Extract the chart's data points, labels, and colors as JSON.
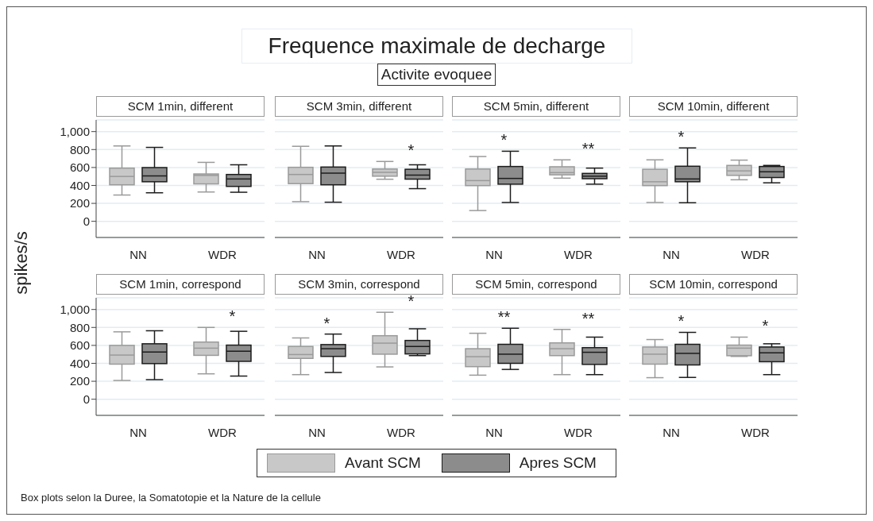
{
  "chart_data": [
    {
      "type": "other",
      "title": "Frequence maximale de decharge",
      "subtitle": "Activite evoquee",
      "annotations": [
        "Box plots selon la Duree, la Somatotopie et la Nature de la cellule"
      ]
    },
    {
      "type": "box",
      "title": "SCM 1min, different",
      "ylabel": "spikes/s",
      "legend": "bottom",
      "grid": "y",
      "categories": [
        "NN",
        "WDR"
      ],
      "ylim": [
        -180,
        1130
      ],
      "yticks": [
        0,
        200,
        400,
        600,
        800,
        {
          "value": 1000,
          "label": "1,000"
        }
      ],
      "series": [
        {
          "name": "Avant SCM",
          "color": "#c8c8c8",
          "boxes": [
            {
              "low": 293,
              "q1": 407,
              "median": 500,
              "q3": 593,
              "high": 840
            },
            {
              "low": 327,
              "q1": 417,
              "median": 512,
              "q3": 528,
              "high": 657
            }
          ]
        },
        {
          "name": "Apres SCM",
          "color": "#8c8c8c",
          "boxes": [
            {
              "low": 318,
              "q1": 441,
              "median": 506,
              "q3": 599,
              "high": 824
            },
            {
              "low": 324,
              "q1": 389,
              "median": 472,
              "q3": 522,
              "high": 630
            }
          ]
        }
      ]
    },
    {
      "type": "box",
      "title": "SCM 3min, different",
      "grid": "y",
      "tick_labels": "x",
      "categories": [
        "NN",
        "WDR"
      ],
      "ylim": [
        -180,
        1130
      ],
      "yticks": [
        0,
        200,
        400,
        600,
        800,
        1000
      ],
      "series": [
        {
          "color": "#c8c8c8",
          "boxes": [
            {
              "low": 219,
              "q1": 420,
              "median": 522,
              "q3": 602,
              "high": 836
            },
            {
              "low": 469,
              "q1": 503,
              "median": 546,
              "q3": 583,
              "high": 667
            }
          ]
        },
        {
          "color": "#8c8c8c",
          "value_labels": [
            null,
            "*"
          ],
          "boxes": [
            {
              "low": 213,
              "q1": 407,
              "median": 537,
              "q3": 605,
              "high": 840
            },
            {
              "low": 364,
              "q1": 470,
              "median": 515,
              "q3": 580,
              "high": 630
            }
          ]
        }
      ]
    },
    {
      "type": "box",
      "title": "SCM 5min, different",
      "grid": "y",
      "tick_labels": "x",
      "categories": [
        "NN",
        "WDR"
      ],
      "ylim": [
        -180,
        1130
      ],
      "yticks": [
        0,
        200,
        400,
        600,
        800,
        1000
      ],
      "series": [
        {
          "color": "#c8c8c8",
          "boxes": [
            {
              "low": 120,
              "q1": 398,
              "median": 454,
              "q3": 583,
              "high": 722
            },
            {
              "low": 481,
              "q1": 518,
              "median": 543,
              "q3": 608,
              "high": 685
            }
          ]
        },
        {
          "color": "#8c8c8c",
          "value_labels": [
            "*",
            "**"
          ],
          "boxes": [
            {
              "low": 210,
              "q1": 414,
              "median": 478,
              "q3": 611,
              "high": 781
            },
            {
              "low": 414,
              "q1": 475,
              "median": 503,
              "q3": 534,
              "high": 593
            }
          ]
        }
      ]
    },
    {
      "type": "box",
      "title": "SCM 10min, different",
      "grid": "y",
      "tick_labels": "x",
      "categories": [
        "NN",
        "WDR"
      ],
      "ylim": [
        -180,
        1130
      ],
      "yticks": [
        0,
        200,
        400,
        600,
        800,
        1000
      ],
      "series": [
        {
          "color": "#c8c8c8",
          "boxes": [
            {
              "low": 210,
              "q1": 398,
              "median": 441,
              "q3": 580,
              "high": 685
            },
            {
              "low": 463,
              "q1": 512,
              "median": 562,
              "q3": 623,
              "high": 682
            }
          ]
        },
        {
          "color": "#8c8c8c",
          "value_labels": [
            "*",
            null
          ],
          "boxes": [
            {
              "low": 207,
              "q1": 441,
              "median": 472,
              "q3": 614,
              "high": 818
            },
            {
              "low": 429,
              "q1": 488,
              "median": 552,
              "q3": 611,
              "high": 623
            }
          ]
        }
      ]
    },
    {
      "type": "box",
      "title": "SCM 1min, correspond",
      "grid": "y",
      "categories": [
        "NN",
        "WDR"
      ],
      "ylim": [
        -180,
        1130
      ],
      "yticks": [
        0,
        200,
        400,
        600,
        800,
        {
          "value": 1000,
          "label": "1,000"
        }
      ],
      "series": [
        {
          "color": "#c8c8c8",
          "boxes": [
            {
              "low": 209,
              "q1": 391,
              "median": 492,
              "q3": 600,
              "high": 751
            },
            {
              "low": 283,
              "q1": 489,
              "median": 569,
              "q3": 637,
              "high": 800
            }
          ]
        },
        {
          "color": "#8c8c8c",
          "value_labels": [
            null,
            "*"
          ],
          "boxes": [
            {
              "low": 218,
              "q1": 397,
              "median": 526,
              "q3": 618,
              "high": 763
            },
            {
              "low": 258,
              "q1": 422,
              "median": 535,
              "q3": 603,
              "high": 757
            }
          ]
        }
      ]
    },
    {
      "type": "box",
      "title": "SCM 3min, correspond",
      "grid": "y",
      "tick_labels": "x",
      "categories": [
        "NN",
        "WDR"
      ],
      "ylim": [
        -180,
        1130
      ],
      "yticks": [
        0,
        200,
        400,
        600,
        800,
        1000
      ],
      "series": [
        {
          "color": "#c8c8c8",
          "boxes": [
            {
              "low": 274,
              "q1": 455,
              "median": 498,
              "q3": 588,
              "high": 683
            },
            {
              "low": 360,
              "q1": 502,
              "median": 625,
              "q3": 708,
              "high": 969
            }
          ]
        },
        {
          "color": "#8c8c8c",
          "value_labels": [
            "*",
            "*"
          ],
          "boxes": [
            {
              "low": 298,
              "q1": 477,
              "median": 563,
              "q3": 609,
              "high": 726
            },
            {
              "low": 486,
              "q1": 505,
              "median": 588,
              "q3": 655,
              "high": 785
            }
          ]
        }
      ]
    },
    {
      "type": "box",
      "title": "SCM 5min, correspond",
      "grid": "y",
      "tick_labels": "x",
      "categories": [
        "NN",
        "WDR"
      ],
      "ylim": [
        -180,
        1130
      ],
      "yticks": [
        0,
        200,
        400,
        600,
        800,
        1000
      ],
      "series": [
        {
          "color": "#c8c8c8",
          "boxes": [
            {
              "low": 268,
              "q1": 363,
              "median": 474,
              "q3": 563,
              "high": 735
            },
            {
              "low": 274,
              "q1": 486,
              "median": 563,
              "q3": 628,
              "high": 778
            }
          ]
        },
        {
          "color": "#8c8c8c",
          "value_labels": [
            "**",
            "**"
          ],
          "boxes": [
            {
              "low": 332,
              "q1": 400,
              "median": 502,
              "q3": 612,
              "high": 791
            },
            {
              "low": 274,
              "q1": 388,
              "median": 523,
              "q3": 575,
              "high": 692
            }
          ]
        }
      ]
    },
    {
      "type": "box",
      "title": "SCM 10min, correspond",
      "grid": "y",
      "tick_labels": "x",
      "categories": [
        "NN",
        "WDR"
      ],
      "ylim": [
        -180,
        1130
      ],
      "yticks": [
        0,
        200,
        400,
        600,
        800,
        1000
      ],
      "series": [
        {
          "color": "#c8c8c8",
          "boxes": [
            {
              "low": 240,
              "q1": 391,
              "median": 502,
              "q3": 582,
              "high": 665
            },
            {
              "low": 477,
              "q1": 485,
              "median": 569,
              "q3": 603,
              "high": 692
            }
          ]
        },
        {
          "color": "#8c8c8c",
          "value_labels": [
            "*",
            "*"
          ],
          "boxes": [
            {
              "low": 243,
              "q1": 382,
              "median": 511,
              "q3": 612,
              "high": 745
            },
            {
              "low": 274,
              "q1": 418,
              "median": 517,
              "q3": 582,
              "high": 618
            }
          ]
        }
      ]
    }
  ]
}
